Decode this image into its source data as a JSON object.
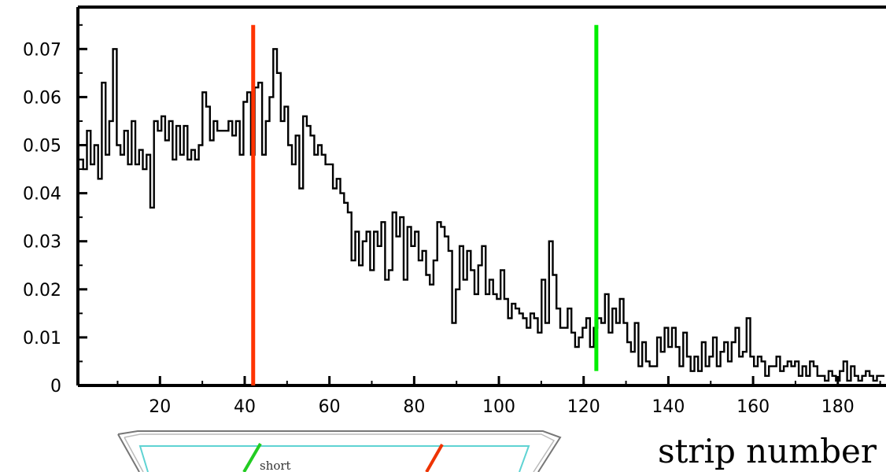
{
  "chart_data": {
    "type": "histogram",
    "title": "",
    "xlabel": "strip number",
    "ylabel": "",
    "xlim": [
      1,
      191
    ],
    "ylim": [
      0,
      0.078
    ],
    "x_ticks": [
      20,
      40,
      60,
      80,
      100,
      120,
      140,
      160,
      180
    ],
    "y_ticks": [
      0,
      0.01,
      0.02,
      0.03,
      0.04,
      0.05,
      0.06,
      0.07
    ],
    "y_tick_labels": [
      "0",
      "0.01",
      "0.02",
      "0.03",
      "0.04",
      "0.05",
      "0.06",
      "0.07"
    ],
    "x_start": 1,
    "bin_width": 1,
    "values": [
      0.047,
      0.045,
      0.053,
      0.046,
      0.05,
      0.043,
      0.063,
      0.048,
      0.055,
      0.07,
      0.05,
      0.048,
      0.053,
      0.046,
      0.055,
      0.046,
      0.049,
      0.045,
      0.048,
      0.037,
      0.055,
      0.053,
      0.056,
      0.051,
      0.055,
      0.047,
      0.054,
      0.048,
      0.054,
      0.047,
      0.049,
      0.047,
      0.05,
      0.061,
      0.058,
      0.051,
      0.055,
      0.053,
      0.053,
      0.053,
      0.055,
      0.052,
      0.055,
      0.048,
      0.059,
      0.061,
      0.048,
      0.062,
      0.063,
      0.048,
      0.055,
      0.06,
      0.07,
      0.065,
      0.055,
      0.058,
      0.05,
      0.046,
      0.052,
      0.041,
      0.056,
      0.054,
      0.052,
      0.048,
      0.05,
      0.048,
      0.046,
      0.046,
      0.041,
      0.043,
      0.04,
      0.038,
      0.036,
      0.026,
      0.032,
      0.025,
      0.03,
      0.032,
      0.024,
      0.032,
      0.029,
      0.034,
      0.022,
      0.024,
      0.036,
      0.031,
      0.035,
      0.022,
      0.033,
      0.029,
      0.032,
      0.026,
      0.028,
      0.023,
      0.021,
      0.026,
      0.034,
      0.033,
      0.031,
      0.028,
      0.013,
      0.02,
      0.029,
      0.022,
      0.028,
      0.024,
      0.019,
      0.025,
      0.029,
      0.019,
      0.022,
      0.019,
      0.018,
      0.024,
      0.018,
      0.014,
      0.017,
      0.016,
      0.015,
      0.014,
      0.012,
      0.015,
      0.014,
      0.011,
      0.022,
      0.013,
      0.03,
      0.023,
      0.016,
      0.012,
      0.012,
      0.016,
      0.011,
      0.008,
      0.01,
      0.012,
      0.014,
      0.008,
      0.012,
      0.014,
      0.013,
      0.019,
      0.011,
      0.016,
      0.013,
      0.018,
      0.013,
      0.009,
      0.007,
      0.013,
      0.004,
      0.009,
      0.005,
      0.004,
      0.004,
      0.01,
      0.007,
      0.012,
      0.008,
      0.012,
      0.008,
      0.004,
      0.011,
      0.006,
      0.003,
      0.006,
      0.003,
      0.009,
      0.004,
      0.006,
      0.01,
      0.004,
      0.007,
      0.009,
      0.005,
      0.009,
      0.012,
      0.006,
      0.007,
      0.014,
      0.006,
      0.004,
      0.006,
      0.005,
      0.002,
      0.004,
      0.004,
      0.006,
      0.003,
      0.004,
      0.005,
      0.004,
      0.005,
      0.002,
      0.004,
      0.002,
      0.005,
      0.004,
      0.002,
      0.002,
      0.001,
      0.003,
      0.002,
      0.001,
      0.003,
      0.005,
      0.001,
      0.004,
      0.002,
      0.001,
      0.002,
      0.003,
      0.002,
      0.001,
      0.002,
      0.002
    ],
    "markers": [
      {
        "x": 42,
        "color": "#ff3300",
        "y_top": 0.075,
        "y_bottom": 0.0
      },
      {
        "x": 123,
        "color": "#00ee00",
        "y_top": 0.075,
        "y_bottom": 0.003
      }
    ],
    "line_color": "#000000",
    "inset": {
      "label": "short",
      "frame_color": "#5fd3d3",
      "green_strip_color": "#22cc22",
      "red_strip_color": "#ee3300"
    }
  }
}
